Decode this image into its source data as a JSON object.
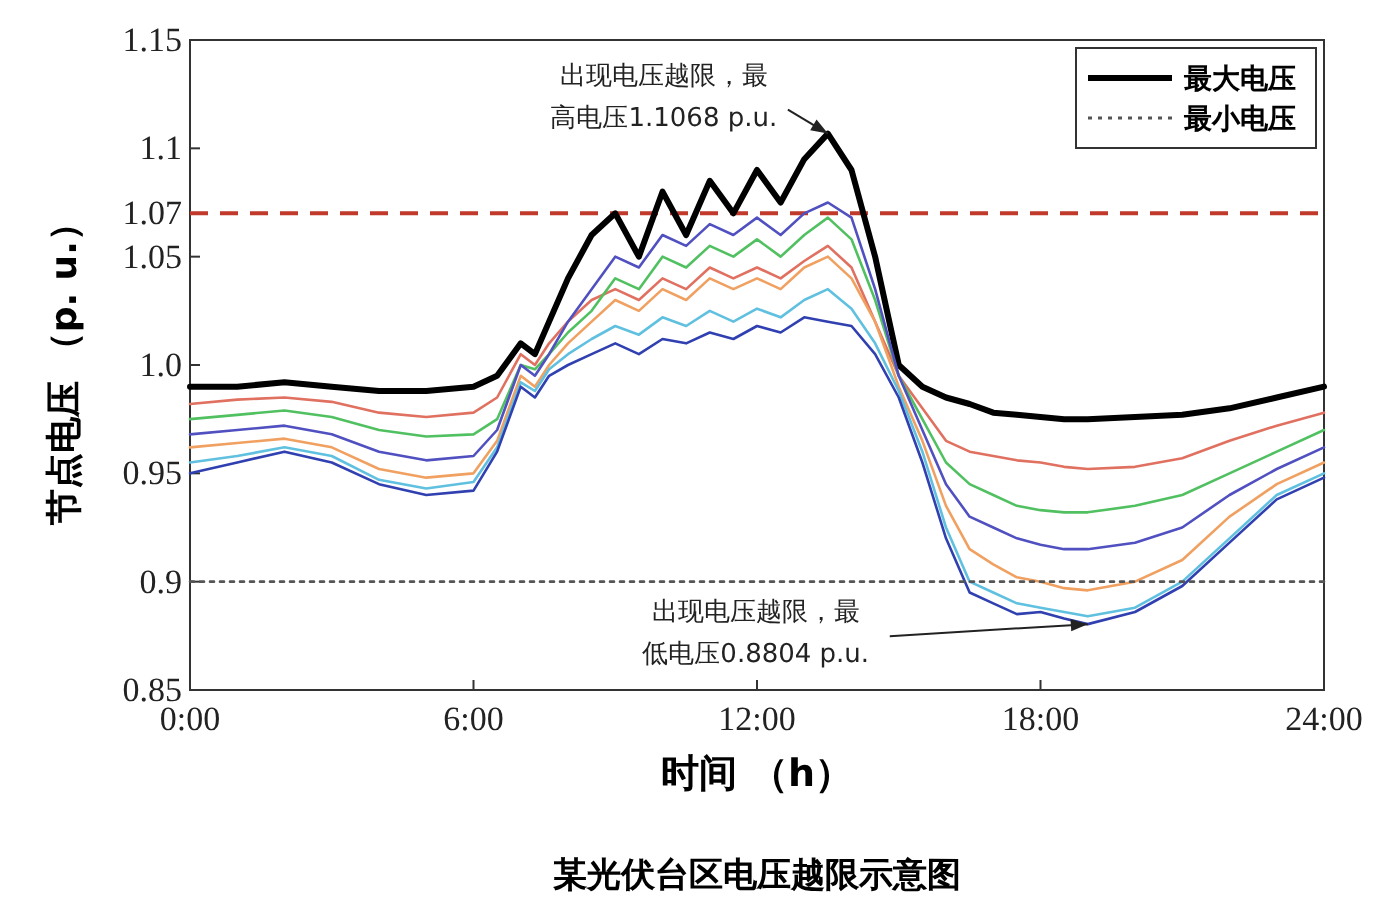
{
  "chart_data": {
    "type": "line",
    "title": "某光伏台区电压越限示意图",
    "xlabel": "时间 （h）",
    "ylabel": "节点电压 （p. u.）",
    "x": [
      0,
      1,
      2,
      3,
      4,
      5,
      6,
      6.5,
      7,
      7.3,
      7.6,
      8,
      8.5,
      9,
      9.5,
      10,
      10.5,
      11,
      11.5,
      12,
      12.5,
      13,
      13.5,
      14,
      14.5,
      15,
      15.5,
      16,
      16.5,
      17,
      17.5,
      18,
      18.5,
      19,
      20,
      21,
      22,
      23,
      24
    ],
    "series": [
      {
        "name": "最大电压",
        "color": "#000000",
        "values": [
          0.99,
          0.99,
          0.992,
          0.99,
          0.988,
          0.988,
          0.99,
          0.995,
          1.01,
          1.005,
          1.02,
          1.04,
          1.06,
          1.07,
          1.05,
          1.08,
          1.06,
          1.085,
          1.07,
          1.09,
          1.075,
          1.095,
          1.1068,
          1.09,
          1.05,
          1.0,
          0.99,
          0.985,
          0.982,
          0.978,
          0.977,
          0.976,
          0.975,
          0.975,
          0.976,
          0.977,
          0.98,
          0.985,
          0.99
        ]
      },
      {
        "color": "#e07060",
        "values": [
          0.982,
          0.984,
          0.985,
          0.983,
          0.978,
          0.976,
          0.978,
          0.985,
          1.005,
          1.0,
          1.01,
          1.02,
          1.03,
          1.035,
          1.03,
          1.04,
          1.035,
          1.045,
          1.04,
          1.045,
          1.04,
          1.048,
          1.055,
          1.045,
          1.02,
          0.995,
          0.98,
          0.965,
          0.96,
          0.958,
          0.956,
          0.955,
          0.953,
          0.952,
          0.953,
          0.957,
          0.965,
          0.972,
          0.978
        ]
      },
      {
        "color": "#50c060",
        "values": [
          0.975,
          0.977,
          0.979,
          0.976,
          0.97,
          0.967,
          0.968,
          0.975,
          1.0,
          0.998,
          1.005,
          1.015,
          1.025,
          1.04,
          1.035,
          1.05,
          1.045,
          1.055,
          1.05,
          1.058,
          1.05,
          1.06,
          1.068,
          1.058,
          1.03,
          0.995,
          0.975,
          0.955,
          0.945,
          0.94,
          0.935,
          0.933,
          0.932,
          0.932,
          0.935,
          0.94,
          0.95,
          0.96,
          0.97
        ]
      },
      {
        "color": "#5050c0",
        "values": [
          0.968,
          0.97,
          0.972,
          0.968,
          0.96,
          0.956,
          0.958,
          0.97,
          1.0,
          0.995,
          1.005,
          1.02,
          1.035,
          1.05,
          1.045,
          1.06,
          1.055,
          1.065,
          1.06,
          1.068,
          1.06,
          1.07,
          1.075,
          1.068,
          1.035,
          0.995,
          0.97,
          0.945,
          0.93,
          0.925,
          0.92,
          0.917,
          0.915,
          0.915,
          0.918,
          0.925,
          0.94,
          0.952,
          0.962
        ]
      },
      {
        "color": "#f0a060",
        "values": [
          0.962,
          0.964,
          0.966,
          0.962,
          0.952,
          0.948,
          0.95,
          0.965,
          0.995,
          0.99,
          1.0,
          1.01,
          1.02,
          1.03,
          1.025,
          1.035,
          1.03,
          1.04,
          1.035,
          1.04,
          1.035,
          1.045,
          1.05,
          1.04,
          1.02,
          0.99,
          0.965,
          0.935,
          0.915,
          0.908,
          0.902,
          0.9,
          0.897,
          0.896,
          0.9,
          0.91,
          0.93,
          0.945,
          0.955
        ]
      },
      {
        "color": "#60c0e0",
        "values": [
          0.955,
          0.958,
          0.962,
          0.958,
          0.947,
          0.943,
          0.946,
          0.962,
          0.992,
          0.988,
          0.998,
          1.005,
          1.012,
          1.018,
          1.014,
          1.022,
          1.018,
          1.025,
          1.02,
          1.026,
          1.022,
          1.03,
          1.035,
          1.026,
          1.01,
          0.988,
          0.96,
          0.925,
          0.9,
          0.895,
          0.89,
          0.888,
          0.886,
          0.884,
          0.888,
          0.9,
          0.92,
          0.94,
          0.95
        ]
      },
      {
        "color": "#3040b0",
        "values": [
          0.95,
          0.955,
          0.96,
          0.955,
          0.945,
          0.94,
          0.942,
          0.96,
          0.99,
          0.985,
          0.995,
          1.0,
          1.005,
          1.01,
          1.005,
          1.012,
          1.01,
          1.015,
          1.012,
          1.018,
          1.015,
          1.022,
          1.02,
          1.018,
          1.005,
          0.985,
          0.955,
          0.92,
          0.895,
          0.89,
          0.885,
          0.886,
          0.883,
          0.8804,
          0.886,
          0.898,
          0.918,
          0.938,
          0.948
        ]
      },
      {
        "name": "最小电压",
        "color": "#555555",
        "line_style": "dotted",
        "x": [
          0,
          24
        ],
        "values": [
          0.9,
          0.9
        ]
      }
    ],
    "xlim": [
      0,
      24
    ],
    "xticks": [
      {
        "value": 0,
        "label": "0:00"
      },
      {
        "value": 6,
        "label": "6:00"
      },
      {
        "value": 12,
        "label": "12:00"
      },
      {
        "value": 18,
        "label": "18:00"
      },
      {
        "value": 24,
        "label": "24:00"
      }
    ],
    "ylim": [
      0.85,
      1.15
    ],
    "yticks": [
      0.85,
      {
        "value": 0.9,
        "label": "0.9"
      },
      0.95,
      {
        "value": 1.0,
        "label": "1.0"
      },
      1.05,
      1.07,
      1.1,
      1.15
    ],
    "ref_lines": [
      {
        "axis": "y",
        "value": 1.07,
        "color": "#c0392b",
        "line_style": "dashed"
      }
    ],
    "annotations": [
      {
        "text": "出现电压越限，最高电压1.1068 p.u.",
        "x": 13.5,
        "y": 1.1068
      },
      {
        "text": "出现电压越限，最低电压0.8804 p.u.",
        "x": 19,
        "y": 0.8804
      }
    ],
    "legend": "top right",
    "grid": false,
    "marker": "none",
    "line_style": "solid"
  }
}
